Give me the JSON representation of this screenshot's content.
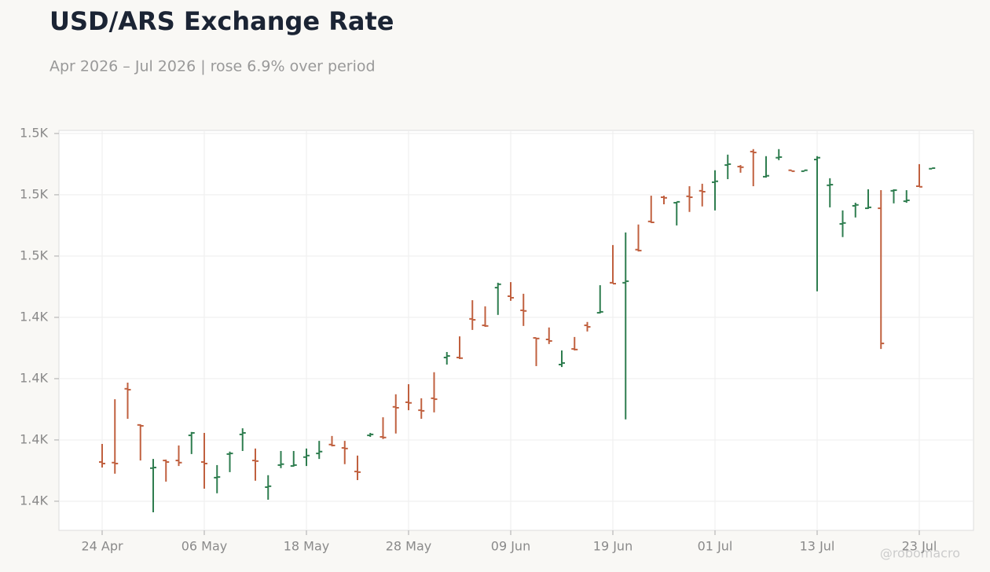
{
  "chart_data": {
    "type": "ohlc",
    "title": "USD/ARS Exchange Rate",
    "subtitle": "Apr 2026 – Jul 2026 | rose 6.9% over period",
    "watermark": "@robomacro",
    "categories": [
      "24 Apr",
      null,
      null,
      null,
      null,
      null,
      null,
      null,
      "06 May",
      null,
      null,
      null,
      null,
      null,
      null,
      null,
      "18 May",
      null,
      null,
      null,
      null,
      null,
      null,
      null,
      "28 May",
      null,
      null,
      null,
      null,
      null,
      null,
      null,
      "09 Jun",
      null,
      null,
      null,
      null,
      null,
      null,
      null,
      "19 Jun",
      null,
      null,
      null,
      null,
      null,
      null,
      null,
      "01 Jul",
      null,
      null,
      null,
      null,
      null,
      null,
      null,
      "13 Jul",
      null,
      null,
      null,
      null,
      null,
      null,
      null,
      "23 Jul",
      null
    ],
    "open": [
      1392.8,
      1392.6,
      1416.7,
      1404.9,
      1390.8,
      1393.3,
      1393.3,
      1401.5,
      1392.8,
      1387.7,
      1395.4,
      1401.8,
      1393.3,
      1384.6,
      1391.8,
      1391.5,
      1394.4,
      1395.6,
      1398.5,
      1397.4,
      1389.7,
      1401.5,
      1401.0,
      1410.8,
      1412.3,
      1409.7,
      1413.6,
      1426.9,
      1426.9,
      1439.5,
      1437.4,
      1449.7,
      1446.9,
      1442.3,
      1433.3,
      1432.8,
      1424.6,
      1429.7,
      1437.4,
      1441.5,
      1451.3,
      1451.3,
      1462.1,
      1471.3,
      1479.2,
      1477.4,
      1479.5,
      1481.3,
      1484.1,
      1489.7,
      1489.2,
      1494.1,
      1485.9,
      1492.1,
      1488.0,
      1487.7,
      1491.5,
      1483.1,
      1470.5,
      1476.4,
      1475.6,
      1475.6,
      1481.3,
      1477.9,
      1482.8,
      1488.5
    ],
    "high": [
      1398.7,
      1413.3,
      1418.7,
      1405.1,
      1393.8,
      1393.6,
      1398.2,
      1402.6,
      1402.3,
      1391.8,
      1396.2,
      1403.8,
      1397.2,
      1388.5,
      1396.4,
      1396.4,
      1397.2,
      1399.7,
      1401.3,
      1399.7,
      1394.9,
      1402.3,
      1407.4,
      1414.9,
      1418.2,
      1413.6,
      1422.1,
      1428.7,
      1433.8,
      1445.6,
      1443.6,
      1451.3,
      1451.5,
      1447.7,
      1433.3,
      1436.7,
      1429.2,
      1433.6,
      1438.5,
      1450.5,
      1463.6,
      1467.7,
      1470.3,
      1479.7,
      1479.7,
      1477.7,
      1482.8,
      1483.6,
      1488.0,
      1493.1,
      1489.7,
      1494.9,
      1492.6,
      1494.9,
      1488.0,
      1488.0,
      1492.6,
      1485.4,
      1474.9,
      1477.4,
      1481.8,
      1481.5,
      1481.8,
      1481.5,
      1490.0,
      1488.7
    ],
    "low": [
      1391.0,
      1389.0,
      1406.9,
      1393.3,
      1376.4,
      1386.4,
      1391.5,
      1395.4,
      1384.1,
      1382.6,
      1389.5,
      1396.4,
      1386.7,
      1380.5,
      1390.8,
      1391.3,
      1391.5,
      1393.8,
      1397.9,
      1392.1,
      1386.9,
      1401.0,
      1400.3,
      1402.1,
      1409.7,
      1406.9,
      1409.0,
      1424.6,
      1426.4,
      1435.9,
      1436.9,
      1440.8,
      1445.4,
      1437.2,
      1424.1,
      1431.3,
      1423.8,
      1429.2,
      1435.4,
      1441.3,
      1451.0,
      1406.7,
      1461.5,
      1470.8,
      1476.9,
      1470.0,
      1474.4,
      1476.2,
      1474.9,
      1485.1,
      1487.2,
      1482.8,
      1485.6,
      1491.3,
      1487.7,
      1487.7,
      1448.5,
      1475.9,
      1466.2,
      1472.6,
      1475.4,
      1429.7,
      1477.2,
      1477.4,
      1482.6,
      1488.5
    ],
    "close": [
      1392.3,
      1392.3,
      1416.4,
      1404.6,
      1391.0,
      1392.8,
      1392.6,
      1402.3,
      1392.3,
      1387.9,
      1395.6,
      1402.3,
      1393.1,
      1384.9,
      1392.1,
      1391.8,
      1394.9,
      1396.2,
      1398.2,
      1397.2,
      1389.5,
      1401.8,
      1400.8,
      1410.5,
      1412.1,
      1409.5,
      1413.3,
      1427.4,
      1426.7,
      1439.2,
      1437.2,
      1450.8,
      1446.4,
      1442.1,
      1433.1,
      1432.3,
      1425.1,
      1429.5,
      1436.9,
      1441.8,
      1451.0,
      1451.8,
      1461.8,
      1471.0,
      1479.0,
      1477.7,
      1479.2,
      1481.0,
      1484.4,
      1490.0,
      1489.0,
      1493.8,
      1486.2,
      1492.3,
      1487.7,
      1488.0,
      1492.1,
      1483.3,
      1470.8,
      1476.7,
      1475.9,
      1431.5,
      1481.5,
      1478.2,
      1482.6,
      1488.7
    ],
    "up_color": "#2e7d4f",
    "down_color": "#c0603f",
    "ylim": [
      1370.5,
      1501.0
    ],
    "yticks": [
      {
        "value": 1380,
        "label": "1.4K"
      },
      {
        "value": 1400,
        "label": "1.4K"
      },
      {
        "value": 1420,
        "label": "1.4K"
      },
      {
        "value": 1440,
        "label": "1.4K"
      },
      {
        "value": 1460,
        "label": "1.5K"
      },
      {
        "value": 1480,
        "label": "1.5K"
      },
      {
        "value": 1500,
        "label": "1.5K"
      }
    ],
    "grid": true
  }
}
